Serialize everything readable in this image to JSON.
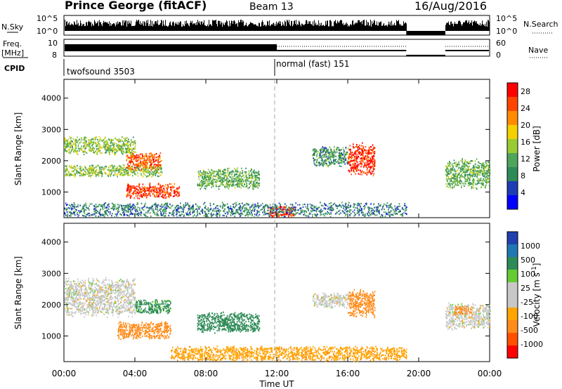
{
  "header": {
    "station": "Prince George (fitACF)",
    "beam": "Beam 13",
    "date": "16/Aug/2016"
  },
  "side_labels": {
    "nsky": "N.Sky",
    "freq_line1": "Freq.",
    "freq_line2": "[MHz]",
    "cpid": "CPID",
    "nsearch": "N.Search",
    "nave": "Nave"
  },
  "top_panels": {
    "nsky_ticks": [
      "10^5",
      "10^0"
    ],
    "nsearch_ticks": [
      "10^5",
      "10^0"
    ],
    "freq_ticks": [
      "10",
      "8"
    ],
    "nave_ticks": [
      "60",
      "0"
    ],
    "cpid_segments": [
      {
        "label": "twofsound 3503",
        "start_hour": 0,
        "end_hour": 12
      },
      {
        "label": "normal (fast) 151",
        "start_hour": 12,
        "end_hour": 24
      }
    ]
  },
  "colors": {
    "power": [
      "#0000ff",
      "#1e3cb4",
      "#2e8b57",
      "#4fa55a",
      "#99cc33",
      "#f5d000",
      "#ff8c00",
      "#ff4500",
      "#ff0000"
    ],
    "velocity": [
      "#ff0000",
      "#ff5000",
      "#ff8c1a",
      "#ffa500",
      "#c8c8c8",
      "#c8c8c8",
      "#66cc33",
      "#2e8b57",
      "#1f78b4",
      "#2040b0"
    ]
  },
  "chart_data": [
    {
      "type": "heatmap",
      "title": "",
      "ylabel": "Slant Range [km]",
      "xlabel": "",
      "xlim": [
        0,
        24
      ],
      "ylim": [
        180,
        4600
      ],
      "x_ticks": [
        0,
        4,
        8,
        12,
        16,
        20,
        24
      ],
      "y_ticks": [
        "4000",
        "3000",
        "2000",
        "1000"
      ],
      "colorbar": {
        "label": "Power [dB]",
        "ticks": [
          "28",
          "24",
          "20",
          "16",
          "12",
          "8",
          "4"
        ],
        "range": [
          0,
          30
        ]
      },
      "data_gap_hours": [
        19.3,
        21.5
      ],
      "features": [
        {
          "t_start": 0.0,
          "t_end": 4.0,
          "range_min": 2200,
          "range_max": 2800,
          "value": 14
        },
        {
          "t_start": 0.0,
          "t_end": 5.5,
          "range_min": 1500,
          "range_max": 1900,
          "value": 14
        },
        {
          "t_start": 3.5,
          "t_end": 5.5,
          "range_min": 1700,
          "range_max": 2300,
          "value": 24
        },
        {
          "t_start": 3.5,
          "t_end": 6.5,
          "range_min": 800,
          "range_max": 1300,
          "value": 26
        },
        {
          "t_start": 7.5,
          "t_end": 11.0,
          "range_min": 1100,
          "range_max": 1800,
          "value": 12
        },
        {
          "t_start": 11.5,
          "t_end": 13.0,
          "range_min": 200,
          "range_max": 600,
          "value": 26
        },
        {
          "t_start": 14.0,
          "t_end": 16.0,
          "range_min": 1800,
          "range_max": 2500,
          "value": 10
        },
        {
          "t_start": 16.0,
          "t_end": 17.5,
          "range_min": 1500,
          "range_max": 2600,
          "value": 27
        },
        {
          "t_start": 21.5,
          "t_end": 24.0,
          "range_min": 1100,
          "range_max": 2100,
          "value": 12
        },
        {
          "t_start": 0.0,
          "t_end": 19.3,
          "range_min": 200,
          "range_max": 700,
          "value": 8
        }
      ]
    },
    {
      "type": "heatmap",
      "title": "",
      "ylabel": "Slant Range [km]",
      "xlabel": "Time UT",
      "xlim": [
        0,
        24
      ],
      "ylim": [
        180,
        4600
      ],
      "x_ticks": [
        0,
        4,
        8,
        12,
        16,
        20,
        24
      ],
      "x_tick_labels": [
        "00:00",
        "04:00",
        "08:00",
        "12:00",
        "16:00",
        "20:00",
        "00:00"
      ],
      "y_ticks": [
        "4000",
        "3000",
        "2000",
        "1000"
      ],
      "colorbar": {
        "label": "Velocity [m s^-1]",
        "ticks": [
          "1000",
          "500",
          "100",
          "25",
          "-25",
          "-100",
          "-500",
          "-1000"
        ]
      },
      "data_gap_hours": [
        19.3,
        21.5
      ],
      "features": [
        {
          "t_start": 0.0,
          "t_end": 4.0,
          "range_min": 1600,
          "range_max": 2900,
          "value": 0
        },
        {
          "t_start": 3.0,
          "t_end": 6.0,
          "range_min": 900,
          "range_max": 1500,
          "value": -300
        },
        {
          "t_start": 4.0,
          "t_end": 6.0,
          "range_min": 1700,
          "range_max": 2200,
          "value": 120
        },
        {
          "t_start": 7.5,
          "t_end": 11.0,
          "range_min": 1100,
          "range_max": 1800,
          "value": 300
        },
        {
          "t_start": 6.0,
          "t_end": 19.3,
          "range_min": 200,
          "range_max": 700,
          "value": -80
        },
        {
          "t_start": 14.0,
          "t_end": 16.0,
          "range_min": 1900,
          "range_max": 2400,
          "value": 0
        },
        {
          "t_start": 16.0,
          "t_end": 17.5,
          "range_min": 1600,
          "range_max": 2500,
          "value": -400
        },
        {
          "t_start": 21.5,
          "t_end": 24.0,
          "range_min": 1200,
          "range_max": 2100,
          "value": 0
        },
        {
          "t_start": 22.0,
          "t_end": 23.0,
          "range_min": 1700,
          "range_max": 2000,
          "value": -400
        }
      ]
    }
  ]
}
